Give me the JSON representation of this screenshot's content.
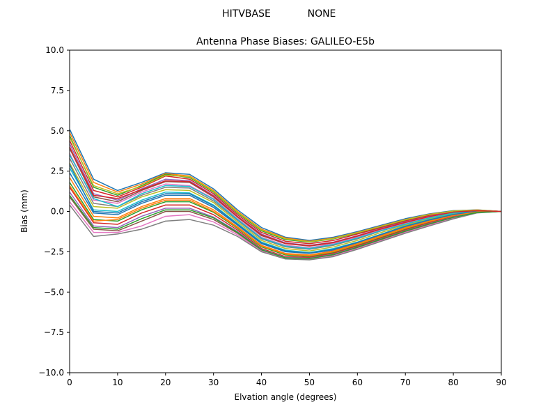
{
  "suptitle": {
    "left": "HITVBASE",
    "right": "NONE"
  },
  "chart_data": {
    "type": "line",
    "title": "Antenna Phase Biases: GALILEO-E5b",
    "xlabel": "Elvation angle (degrees)",
    "ylabel": "Bias (mm)",
    "xlim": [
      0,
      90
    ],
    "ylim": [
      -10,
      10
    ],
    "xticks": [
      0,
      10,
      20,
      30,
      40,
      50,
      60,
      70,
      80,
      90
    ],
    "yticks": [
      10.0,
      7.5,
      5.0,
      2.5,
      0.0,
      -2.5,
      -5.0,
      -7.5,
      -10.0
    ],
    "xtick_labels": [
      "0",
      "10",
      "20",
      "30",
      "40",
      "50",
      "60",
      "70",
      "80",
      "90"
    ],
    "ytick_labels": [
      "10.0",
      "7.5",
      "5.0",
      "2.5",
      "0.0",
      "−2.5",
      "−5.0",
      "−7.5",
      "−10.0"
    ],
    "grid": false,
    "legend": "none",
    "palette": [
      "#1f77b4",
      "#ff7f0e",
      "#2ca02c",
      "#d62728",
      "#9467bd",
      "#8c564b",
      "#e377c2",
      "#7f7f7f",
      "#bcbd22",
      "#17becf"
    ],
    "x": [
      0,
      5,
      10,
      15,
      20,
      25,
      30,
      35,
      40,
      45,
      50,
      55,
      60,
      65,
      70,
      75,
      80,
      85,
      90
    ],
    "series": [
      {
        "values": [
          5.1,
          2.0,
          1.3,
          1.8,
          2.4,
          2.3,
          1.4,
          0.1,
          -1.0,
          -1.6,
          -1.8,
          -1.6,
          -1.25,
          -0.85,
          -0.45,
          -0.15,
          0.05,
          0.1,
          0.0
        ]
      },
      {
        "values": [
          4.9,
          1.8,
          1.2,
          1.7,
          2.35,
          2.2,
          1.3,
          0.0,
          -1.1,
          -1.65,
          -1.85,
          -1.65,
          -1.3,
          -0.9,
          -0.5,
          -0.18,
          0.03,
          0.09,
          0.0
        ]
      },
      {
        "values": [
          4.7,
          1.5,
          1.0,
          1.6,
          2.3,
          2.1,
          1.2,
          -0.1,
          -1.2,
          -1.75,
          -1.9,
          -1.7,
          -1.35,
          -0.95,
          -0.55,
          -0.2,
          0.02,
          0.08,
          0.0
        ]
      },
      {
        "values": [
          4.4,
          1.3,
          0.9,
          1.5,
          2.2,
          2.0,
          1.1,
          -0.2,
          -1.3,
          -1.85,
          -2.0,
          -1.8,
          -1.4,
          -1.0,
          -0.6,
          -0.25,
          0.0,
          0.07,
          0.0
        ]
      },
      {
        "values": [
          4.2,
          1.1,
          0.7,
          1.4,
          2.0,
          1.9,
          1.0,
          -0.3,
          -1.4,
          -1.95,
          -2.1,
          -1.9,
          -1.5,
          -1.05,
          -0.65,
          -0.3,
          -0.02,
          0.06,
          0.0
        ]
      },
      {
        "values": [
          3.9,
          0.9,
          0.6,
          1.3,
          1.85,
          1.8,
          0.9,
          -0.35,
          -1.5,
          -2.0,
          -2.15,
          -1.95,
          -1.55,
          -1.1,
          -0.7,
          -0.33,
          -0.05,
          0.05,
          0.0
        ]
      },
      {
        "values": [
          3.6,
          0.7,
          0.5,
          1.2,
          1.7,
          1.6,
          0.8,
          -0.45,
          -1.6,
          -2.1,
          -2.25,
          -2.0,
          -1.6,
          -1.15,
          -0.75,
          -0.37,
          -0.08,
          0.04,
          0.0
        ]
      },
      {
        "values": [
          3.3,
          0.5,
          0.3,
          1.0,
          1.5,
          1.45,
          0.65,
          -0.55,
          -1.7,
          -2.2,
          -2.35,
          -2.1,
          -1.7,
          -1.2,
          -0.8,
          -0.42,
          -0.11,
          0.03,
          0.0
        ]
      },
      {
        "values": [
          3.0,
          0.3,
          0.2,
          0.9,
          1.35,
          1.3,
          0.55,
          -0.65,
          -1.8,
          -2.3,
          -2.45,
          -2.2,
          -1.8,
          -1.3,
          -0.85,
          -0.46,
          -0.14,
          0.02,
          0.0
        ]
      },
      {
        "values": [
          2.7,
          0.1,
          0.0,
          0.7,
          1.2,
          1.15,
          0.4,
          -0.75,
          -1.9,
          -2.4,
          -2.55,
          -2.3,
          -1.9,
          -1.4,
          -0.9,
          -0.5,
          -0.18,
          0.01,
          0.0
        ]
      },
      {
        "values": [
          2.4,
          -0.1,
          -0.2,
          0.5,
          1.0,
          1.0,
          0.25,
          -0.85,
          -2.0,
          -2.5,
          -2.6,
          -2.4,
          -1.95,
          -1.45,
          -0.95,
          -0.55,
          -0.21,
          0.0,
          0.0
        ]
      },
      {
        "values": [
          2.1,
          -0.3,
          -0.4,
          0.3,
          0.8,
          0.8,
          0.1,
          -0.95,
          -2.1,
          -2.6,
          -2.7,
          -2.45,
          -2.0,
          -1.5,
          -1.0,
          -0.6,
          -0.25,
          -0.02,
          0.0
        ]
      },
      {
        "values": [
          1.8,
          -0.5,
          -0.6,
          0.1,
          0.6,
          0.6,
          -0.05,
          -1.05,
          -2.2,
          -2.7,
          -2.8,
          -2.55,
          -2.1,
          -1.6,
          -1.1,
          -0.65,
          -0.28,
          -0.03,
          0.0
        ]
      },
      {
        "values": [
          1.5,
          -0.7,
          -0.8,
          -0.1,
          0.4,
          0.4,
          -0.2,
          -1.15,
          -2.3,
          -2.8,
          -2.85,
          -2.6,
          -2.15,
          -1.65,
          -1.15,
          -0.7,
          -0.32,
          -0.04,
          0.0
        ]
      },
      {
        "values": [
          1.2,
          -0.9,
          -1.0,
          -0.3,
          0.2,
          0.2,
          -0.35,
          -1.25,
          -2.35,
          -2.85,
          -2.9,
          -2.65,
          -2.2,
          -1.7,
          -1.2,
          -0.75,
          -0.35,
          -0.05,
          0.0
        ]
      },
      {
        "values": [
          0.9,
          -1.1,
          -1.2,
          -0.6,
          0.0,
          0.0,
          -0.5,
          -1.35,
          -2.4,
          -2.9,
          -2.95,
          -2.7,
          -2.25,
          -1.75,
          -1.25,
          -0.8,
          -0.4,
          -0.07,
          0.0
        ]
      },
      {
        "values": [
          0.6,
          -1.3,
          -1.3,
          -0.9,
          -0.3,
          -0.2,
          -0.65,
          -1.45,
          -2.45,
          -2.92,
          -2.98,
          -2.75,
          -2.3,
          -1.8,
          -1.3,
          -0.85,
          -0.43,
          -0.08,
          0.0
        ]
      },
      {
        "values": [
          0.4,
          -1.55,
          -1.4,
          -1.1,
          -0.6,
          -0.5,
          -0.85,
          -1.55,
          -2.5,
          -2.95,
          -3.0,
          -2.8,
          -2.35,
          -1.85,
          -1.35,
          -0.9,
          -0.46,
          -0.09,
          0.0
        ]
      },
      {
        "values": [
          4.6,
          1.6,
          1.1,
          1.55,
          2.25,
          2.15,
          1.25,
          -0.05,
          -1.15,
          -1.7,
          -1.88,
          -1.68,
          -1.32,
          -0.92,
          -0.52,
          -0.19,
          0.02,
          0.08,
          0.0
        ]
      },
      {
        "values": [
          3.5,
          0.8,
          0.3,
          1.1,
          1.6,
          1.55,
          0.75,
          -0.5,
          -1.65,
          -2.15,
          -2.3,
          -2.05,
          -1.65,
          -1.18,
          -0.78,
          -0.4,
          -0.1,
          0.03,
          0.0
        ]
      },
      {
        "values": [
          2.9,
          0.0,
          -0.1,
          0.6,
          1.1,
          1.1,
          0.35,
          -0.8,
          -1.95,
          -2.45,
          -2.58,
          -2.35,
          -1.92,
          -1.42,
          -0.92,
          -0.52,
          -0.19,
          0.0,
          0.0
        ]
      },
      {
        "values": [
          1.6,
          -0.6,
          -0.5,
          0.2,
          0.7,
          0.7,
          0.0,
          -1.0,
          -2.15,
          -2.65,
          -2.75,
          -2.5,
          -2.05,
          -1.55,
          -1.05,
          -0.62,
          -0.26,
          -0.03,
          0.0
        ]
      },
      {
        "values": [
          1.0,
          -1.0,
          -1.1,
          -0.45,
          0.1,
          0.1,
          -0.4,
          -1.3,
          -2.38,
          -2.88,
          -2.92,
          -2.68,
          -2.22,
          -1.72,
          -1.22,
          -0.77,
          -0.37,
          -0.06,
          0.0
        ]
      },
      {
        "values": [
          4.0,
          1.0,
          0.8,
          1.35,
          1.9,
          1.85,
          0.95,
          -0.32,
          -1.45,
          -1.98,
          -2.12,
          -1.92,
          -1.52,
          -1.08,
          -0.68,
          -0.32,
          -0.04,
          0.05,
          0.0
        ]
      }
    ]
  }
}
